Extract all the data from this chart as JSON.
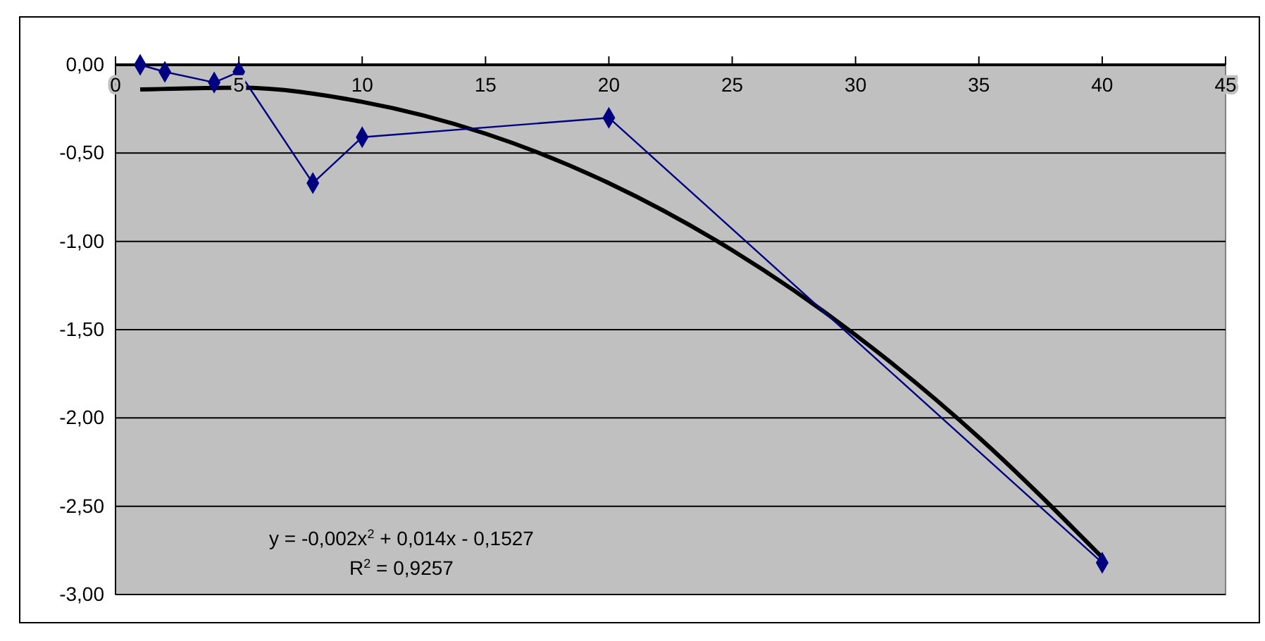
{
  "chart_data": {
    "type": "line",
    "xlim": [
      0,
      45
    ],
    "xticks": [
      0,
      5,
      10,
      15,
      20,
      25,
      30,
      35,
      40,
      45
    ],
    "ylim": [
      -3,
      0
    ],
    "yticks": [
      {
        "value": 0,
        "label": "0,00"
      },
      {
        "value": -0.5,
        "label": "-0,50"
      },
      {
        "value": -1,
        "label": "-1,00"
      },
      {
        "value": -1.5,
        "label": "-1,50"
      },
      {
        "value": -2,
        "label": "-2,00"
      },
      {
        "value": -2.5,
        "label": "-2,50"
      },
      {
        "value": -3,
        "label": "-3,00"
      }
    ],
    "grid": "y",
    "series": [
      {
        "type": "line",
        "marker": "none",
        "color": "#000000",
        "x": [
          1,
          5,
          10,
          15,
          20,
          25,
          30,
          35,
          40
        ],
        "values": [
          -0.14,
          -0.13,
          -0.21,
          -0.39,
          -0.67,
          -1.05,
          -1.53,
          -2.11,
          -2.79
        ]
      },
      {
        "marker": "diamond",
        "color": "#000080",
        "x": [
          1,
          2,
          4,
          5,
          8,
          10,
          20,
          40
        ],
        "values": [
          0,
          -0.04,
          -0.1,
          -0.04,
          -0.67,
          -0.41,
          -0.3,
          -2.82
        ]
      }
    ],
    "annotations": [
      "y = -0,002x$^{2}$ + 0,014x - 0,1527",
      "R$^{2}$ = 0,9257"
    ]
  }
}
